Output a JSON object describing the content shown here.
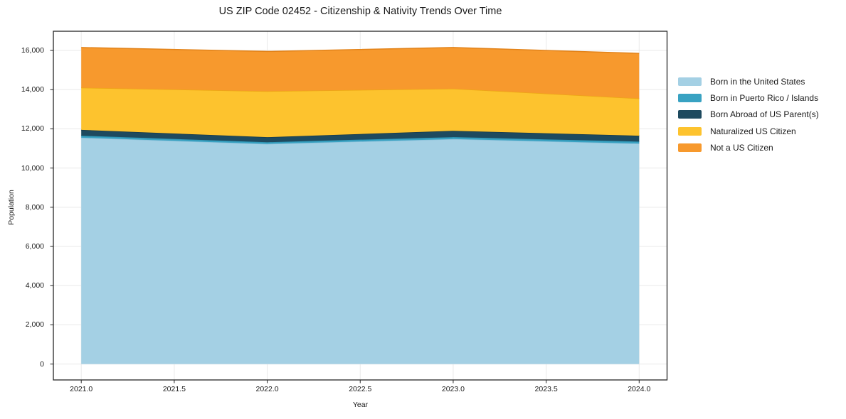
{
  "title": "US ZIP Code 02452 - Citizenship & Nativity Trends Over Time",
  "chart_data": {
    "type": "area",
    "stacked": true,
    "title": "US ZIP Code 02452 - Citizenship & Nativity Trends Over Time",
    "xlabel": "Year",
    "ylabel": "Population",
    "x": [
      2021,
      2022,
      2023,
      2024
    ],
    "series": [
      {
        "name": "Born in the United States",
        "values": [
          11550,
          11230,
          11480,
          11250
        ],
        "color": "#a4d0e4",
        "edge_color": "#8bc0da"
      },
      {
        "name": "Born in Puerto Rico / Islands",
        "values": [
          100,
          90,
          100,
          100
        ],
        "color": "#39a2c2",
        "edge_color": "#2d93b2"
      },
      {
        "name": "Born Abroad of US Parent(s)",
        "values": [
          300,
          255,
          320,
          300
        ],
        "color": "#1e4a5f",
        "edge_color": "#16394a"
      },
      {
        "name": "Naturalized US Citizen",
        "values": [
          2150,
          2345,
          2150,
          1900
        ],
        "color": "#fdc32e",
        "edge_color": "#eda714"
      },
      {
        "name": "Not a US Citizen",
        "values": [
          2050,
          2030,
          2100,
          2300
        ],
        "color": "#f7992d",
        "edge_color": "#e2831a"
      }
    ],
    "xticks": {
      "values": [
        2021.0,
        2021.5,
        2022.0,
        2022.5,
        2023.0,
        2023.5,
        2024.0
      ],
      "labels": [
        "2021.0",
        "2021.5",
        "2022.0",
        "2022.5",
        "2023.0",
        "2023.5",
        "2024.0"
      ]
    },
    "yticks": {
      "values": [
        0,
        2000,
        4000,
        6000,
        8000,
        10000,
        12000,
        14000,
        16000
      ],
      "labels": [
        "0",
        "2,000",
        "4,000",
        "6,000",
        "8,000",
        "10,000",
        "12,000",
        "14,000",
        "16,000"
      ]
    },
    "xlim": [
      2020.85,
      2024.15
    ],
    "ylim": [
      -810,
      16980
    ],
    "grid": true,
    "legend_position": "right-outside"
  },
  "colors": {
    "background": "#ffffff",
    "grid": "#e9e9e9",
    "frame": "#262626",
    "text": "#1a1a1a"
  }
}
